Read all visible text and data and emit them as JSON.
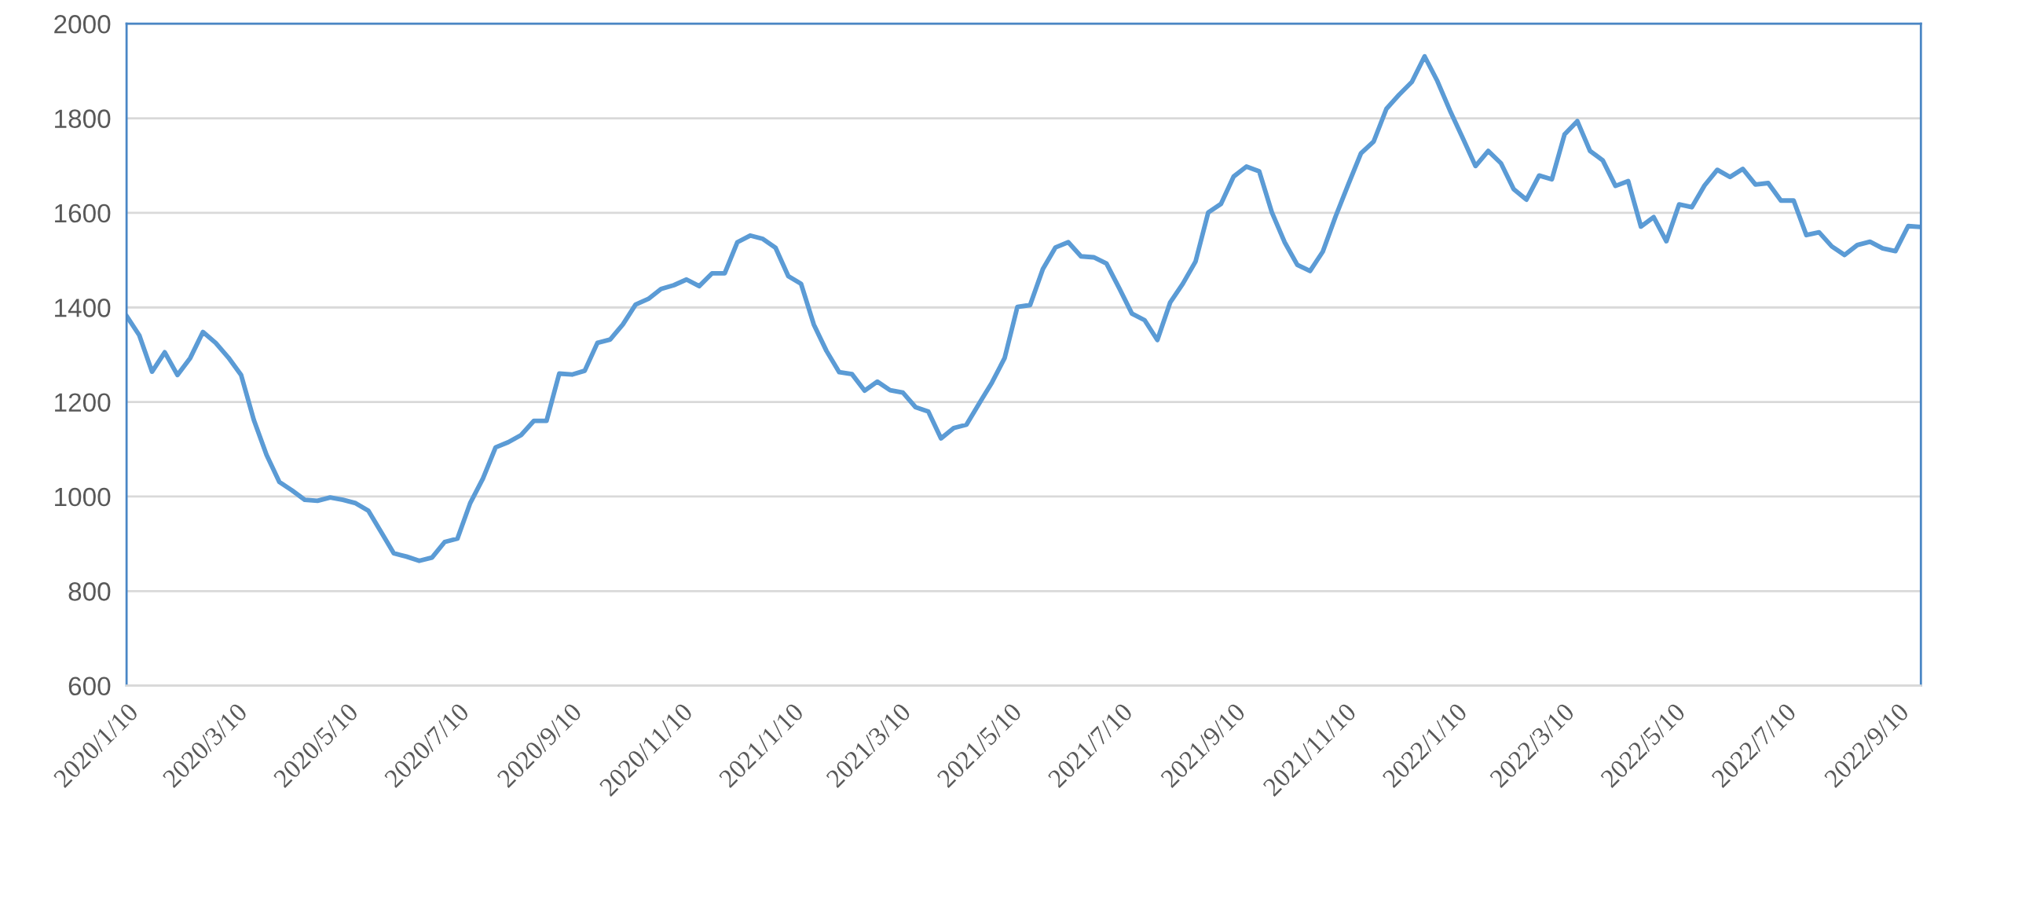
{
  "chart_data": {
    "type": "line",
    "x": [
      "2020-01-10",
      "2020-01-17",
      "2020-01-24",
      "2020-01-31",
      "2020-02-07",
      "2020-02-14",
      "2020-02-21",
      "2020-02-28",
      "2020-03-06",
      "2020-03-13",
      "2020-03-20",
      "2020-03-27",
      "2020-04-03",
      "2020-04-10",
      "2020-04-17",
      "2020-04-24",
      "2020-05-01",
      "2020-05-08",
      "2020-05-15",
      "2020-05-22",
      "2020-05-29",
      "2020-06-05",
      "2020-06-12",
      "2020-06-19",
      "2020-06-26",
      "2020-07-03",
      "2020-07-10",
      "2020-07-17",
      "2020-07-24",
      "2020-07-31",
      "2020-08-07",
      "2020-08-14",
      "2020-08-21",
      "2020-08-28",
      "2020-09-04",
      "2020-09-11",
      "2020-09-18",
      "2020-09-25",
      "2020-10-02",
      "2020-10-09",
      "2020-10-16",
      "2020-10-23",
      "2020-10-30",
      "2020-11-06",
      "2020-11-13",
      "2020-11-20",
      "2020-11-27",
      "2020-12-04",
      "2020-12-11",
      "2020-12-18",
      "2020-12-25",
      "2021-01-01",
      "2021-01-08",
      "2021-01-15",
      "2021-01-22",
      "2021-01-29",
      "2021-02-05",
      "2021-02-12",
      "2021-02-19",
      "2021-02-26",
      "2021-03-05",
      "2021-03-12",
      "2021-03-19",
      "2021-03-26",
      "2021-04-02",
      "2021-04-09",
      "2021-04-16",
      "2021-04-23",
      "2021-04-30",
      "2021-05-07",
      "2021-05-14",
      "2021-05-21",
      "2021-05-28",
      "2021-06-04",
      "2021-06-11",
      "2021-06-18",
      "2021-06-25",
      "2021-07-02",
      "2021-07-09",
      "2021-07-16",
      "2021-07-23",
      "2021-07-30",
      "2021-08-06",
      "2021-08-13",
      "2021-08-20",
      "2021-08-27",
      "2021-09-03",
      "2021-09-10",
      "2021-09-17",
      "2021-09-24",
      "2021-10-01",
      "2021-10-08",
      "2021-10-15",
      "2021-10-22",
      "2021-10-29",
      "2021-11-05",
      "2021-11-12",
      "2021-11-19",
      "2021-11-26",
      "2021-12-03",
      "2021-12-10",
      "2021-12-17",
      "2021-12-24",
      "2021-12-31",
      "2022-01-07",
      "2022-01-14",
      "2022-01-21",
      "2022-01-28",
      "2022-02-04",
      "2022-02-11",
      "2022-02-18",
      "2022-02-25",
      "2022-03-04",
      "2022-03-11",
      "2022-03-18",
      "2022-03-25",
      "2022-04-01",
      "2022-04-08",
      "2022-04-15",
      "2022-04-22",
      "2022-04-29",
      "2022-05-06",
      "2022-05-13",
      "2022-05-20",
      "2022-05-27",
      "2022-06-03",
      "2022-06-10",
      "2022-06-17",
      "2022-06-24",
      "2022-07-01",
      "2022-07-08",
      "2022-07-15",
      "2022-07-22",
      "2022-07-29",
      "2022-08-05",
      "2022-08-12",
      "2022-08-19",
      "2022-08-26",
      "2022-09-02",
      "2022-09-09",
      "2022-09-16",
      "2022-09-23"
    ],
    "series": [
      {
        "color": "#5b9bd5",
        "values": [
          1382,
          1341,
          1264,
          1305,
          1257,
          1293,
          1348,
          1325,
          1294,
          1257,
          1162,
          1088,
          1031,
          1013,
          993,
          991,
          998,
          993,
          986,
          970,
          925,
          880,
          873,
          864,
          871,
          904,
          911,
          986,
          1038,
          1104,
          1115,
          1130,
          1160,
          1160,
          1260,
          1258,
          1266,
          1325,
          1332,
          1364,
          1406,
          1418,
          1439,
          1447,
          1459,
          1445,
          1472,
          1472,
          1538,
          1552,
          1545,
          1526,
          1466,
          1450,
          1364,
          1308,
          1263,
          1259,
          1224,
          1243,
          1225,
          1220,
          1189,
          1180,
          1123,
          1145,
          1152,
          1197,
          1241,
          1293,
          1401,
          1405,
          1481,
          1527,
          1538,
          1508,
          1506,
          1493,
          1441,
          1387,
          1373,
          1331,
          1410,
          1450,
          1497,
          1601,
          1619,
          1677,
          1698,
          1688,
          1601,
          1538,
          1490,
          1477,
          1518,
          1592,
          1660,
          1726,
          1751,
          1820,
          1850,
          1877,
          1931,
          1879,
          1816,
          1758,
          1699,
          1731,
          1705,
          1650,
          1628,
          1679,
          1671,
          1766,
          1794,
          1731,
          1711,
          1657,
          1667,
          1571,
          1591,
          1540,
          1618,
          1612,
          1658,
          1691,
          1676,
          1693,
          1660,
          1663,
          1626,
          1626,
          1553,
          1559,
          1529,
          1511,
          1532,
          1539,
          1525,
          1519,
          1572,
          1570
        ]
      }
    ],
    "xlim": [
      "2020-01-10",
      "2022-09-23"
    ],
    "xticks": [
      {
        "value": "2020-01-10",
        "label": "2020/1/10"
      },
      {
        "value": "2020-03-10",
        "label": "2020/3/10"
      },
      {
        "value": "2020-05-10",
        "label": "2020/5/10"
      },
      {
        "value": "2020-07-10",
        "label": "2020/7/10"
      },
      {
        "value": "2020-09-10",
        "label": "2020/9/10"
      },
      {
        "value": "2020-11-10",
        "label": "2020/11/10"
      },
      {
        "value": "2021-01-10",
        "label": "2021/1/10"
      },
      {
        "value": "2021-03-10",
        "label": "2021/3/10"
      },
      {
        "value": "2021-05-10",
        "label": "2021/5/10"
      },
      {
        "value": "2021-07-10",
        "label": "2021/7/10"
      },
      {
        "value": "2021-09-10",
        "label": "2021/9/10"
      },
      {
        "value": "2021-11-10",
        "label": "2021/11/10"
      },
      {
        "value": "2022-01-10",
        "label": "2022/1/10"
      },
      {
        "value": "2022-03-10",
        "label": "2022/3/10"
      },
      {
        "value": "2022-05-10",
        "label": "2022/5/10"
      },
      {
        "value": "2022-07-10",
        "label": "2022/7/10"
      },
      {
        "value": "2022-09-10",
        "label": "2022/9/10"
      }
    ],
    "ylim": [
      600,
      2000
    ],
    "yticks": [
      600,
      800,
      1000,
      1200,
      1400,
      1600,
      1800,
      2000
    ],
    "grid": "y",
    "marker": "none",
    "line_style": "solid",
    "legend": false
  }
}
